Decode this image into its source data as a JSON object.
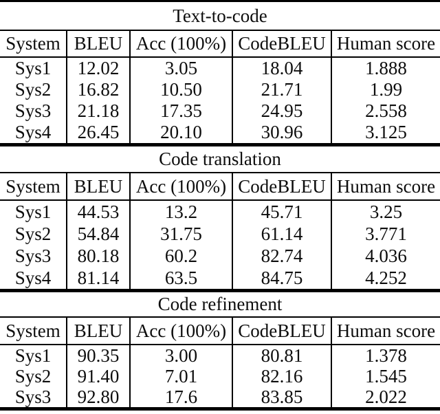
{
  "document": {
    "background": "#ffffff",
    "text_color": "#0d0d0d",
    "rule_color": "#000000"
  },
  "tables": [
    {
      "title": "Text-to-code",
      "headers": [
        "System",
        "BLEU",
        "Acc (100%)",
        "CodeBLEU",
        "Human score"
      ],
      "rows": [
        [
          "Sys1",
          "12.02",
          "3.05",
          "18.04",
          "1.888"
        ],
        [
          "Sys2",
          "16.82",
          "10.50",
          "21.71",
          "1.99"
        ],
        [
          "Sys3",
          "21.18",
          "17.35",
          "24.95",
          "2.558"
        ],
        [
          "Sys4",
          "26.45",
          "20.10",
          "30.96",
          "3.125"
        ]
      ]
    },
    {
      "title": "Code translation",
      "headers": [
        "System",
        "BLEU",
        "Acc (100%)",
        "CodeBLEU",
        "Human score"
      ],
      "rows": [
        [
          "Sys1",
          "44.53",
          "13.2",
          "45.71",
          "3.25"
        ],
        [
          "Sys2",
          "54.84",
          "31.75",
          "61.14",
          "3.771"
        ],
        [
          "Sys3",
          "80.18",
          "60.2",
          "82.74",
          "4.036"
        ],
        [
          "Sys4",
          "81.14",
          "63.5",
          "84.75",
          "4.252"
        ]
      ]
    },
    {
      "title": "Code refinement",
      "headers": [
        "System",
        "BLEU",
        "Acc (100%)",
        "CodeBLEU",
        "Human score"
      ],
      "rows": [
        [
          "Sys1",
          "90.35",
          "3.00",
          "80.81",
          "1.378"
        ],
        [
          "Sys2",
          "91.40",
          "7.01",
          "82.16",
          "1.545"
        ],
        [
          "Sys3",
          "92.80",
          "17.6",
          "83.85",
          "2.022"
        ]
      ]
    }
  ]
}
